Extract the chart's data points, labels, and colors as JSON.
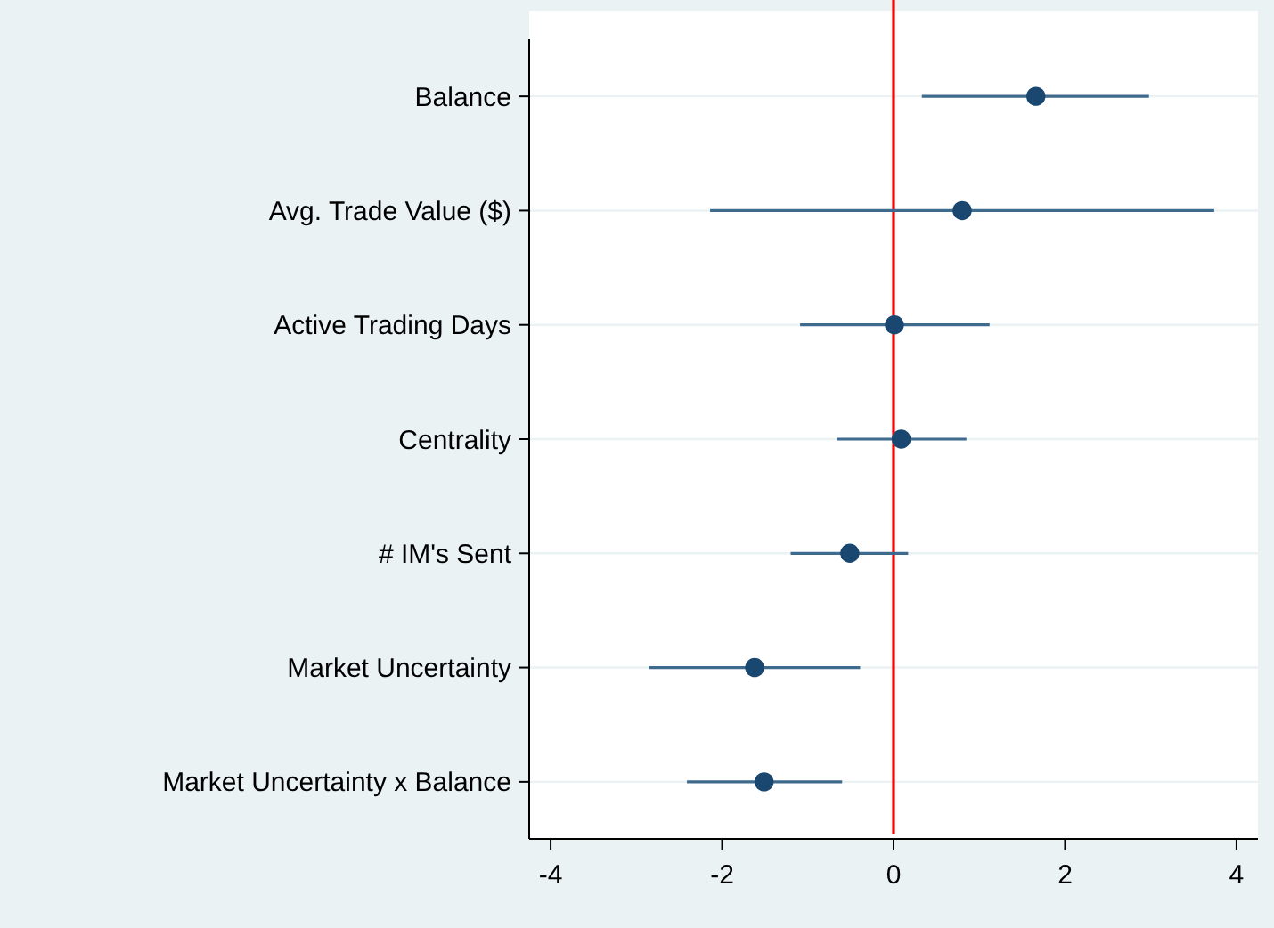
{
  "chart_data": {
    "type": "scatter",
    "orientation": "horizontal",
    "categories": [
      "Balance",
      "Avg. Trade Value ($)",
      "Active Trading Days",
      "Centrality",
      "# IM's Sent",
      "Market Uncertainty",
      "Market Uncertainty x Balance"
    ],
    "series": [
      {
        "color": "#1a476f",
        "values": [
          1.66,
          0.8,
          0.01,
          0.09,
          -0.51,
          -1.62,
          -1.51
        ],
        "errors": [
          [
            0.33,
            2.98
          ],
          [
            -2.14,
            3.74
          ],
          [
            -1.09,
            1.12
          ],
          [
            -0.66,
            0.85
          ],
          [
            -1.2,
            0.17
          ],
          [
            -2.85,
            -0.39
          ],
          [
            -2.41,
            -0.6
          ]
        ]
      }
    ],
    "xlim": [
      -4.25,
      4.25
    ],
    "xticks": [
      -4,
      -2,
      0,
      2,
      4
    ],
    "grid": "y",
    "marker": "circle",
    "ref_lines": [
      {
        "axis": "x",
        "value": 0,
        "color": "#ff0000"
      }
    ]
  }
}
